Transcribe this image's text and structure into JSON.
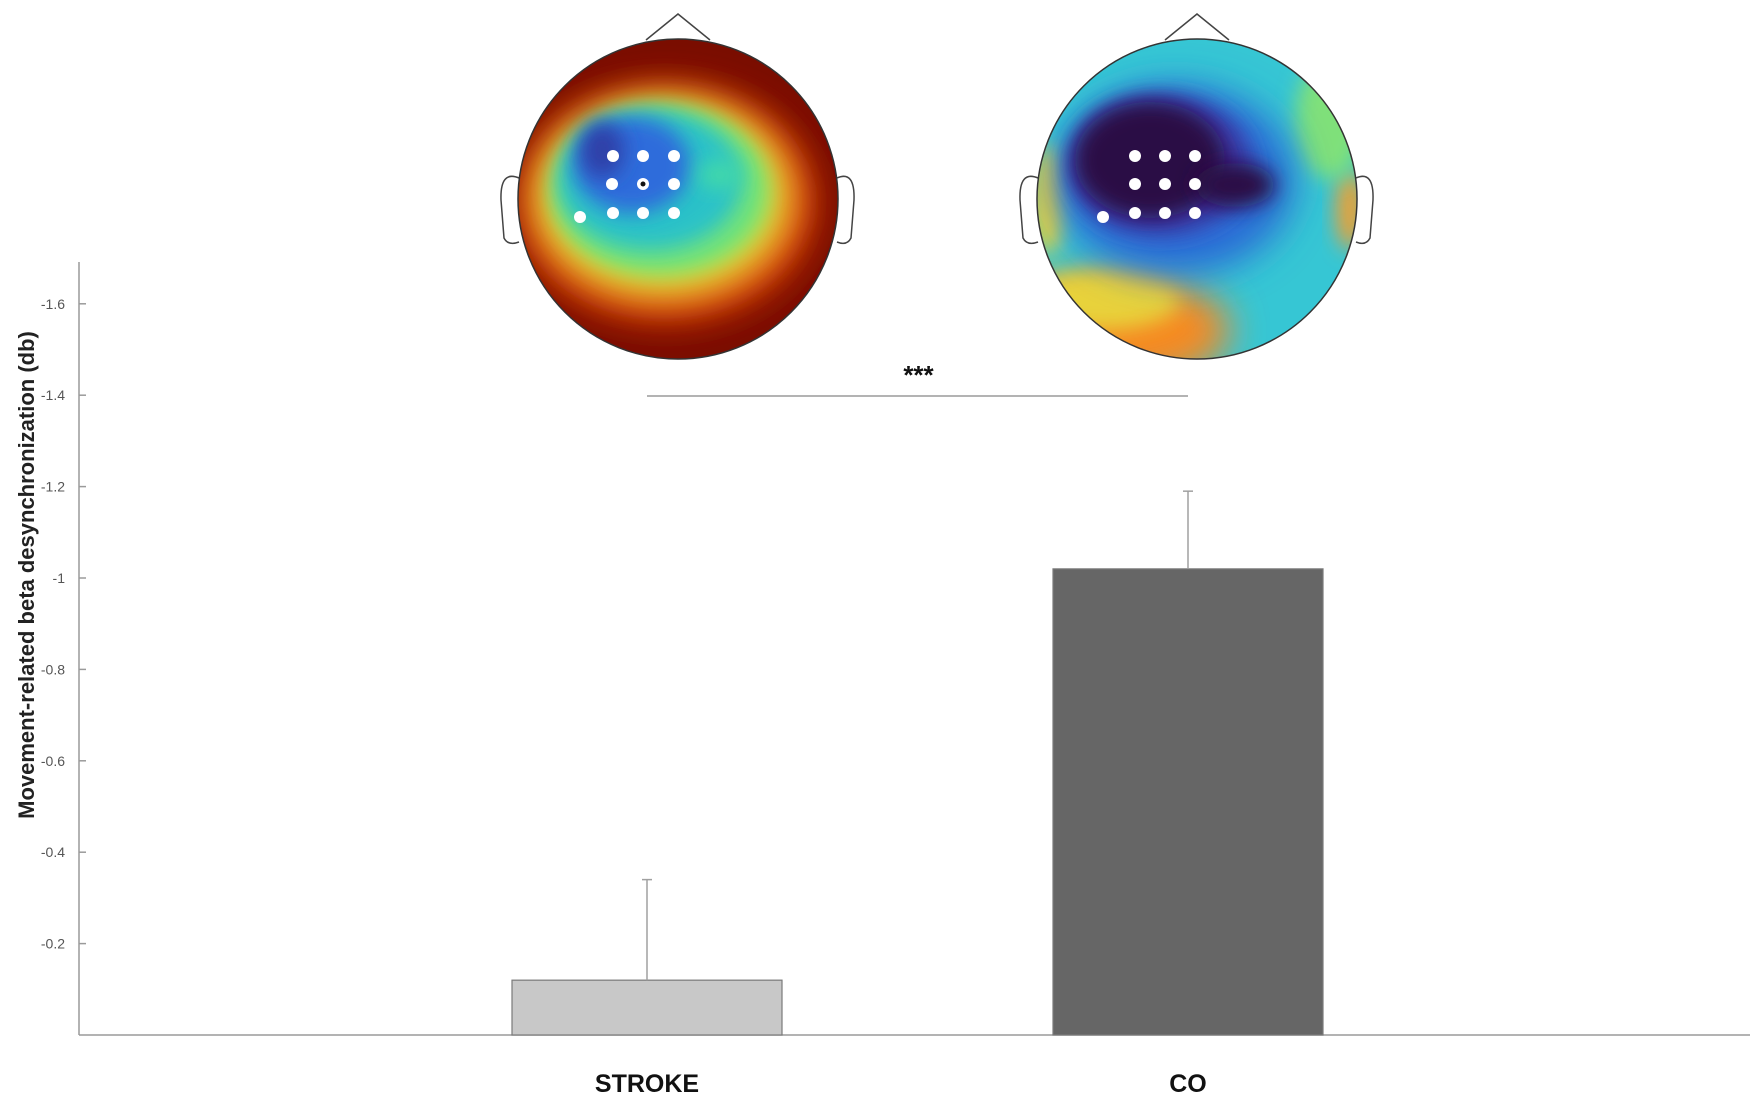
{
  "chart_data": {
    "type": "bar",
    "categories": [
      "STROKE",
      "CO"
    ],
    "values": [
      -0.12,
      -1.02
    ],
    "error_upper": [
      -0.34,
      -1.19
    ],
    "colors": [
      "#c8c8c8",
      "#666666"
    ],
    "ylabel": "Movement-related beta desynchronization (db)",
    "ylim": [
      0,
      -1.7
    ],
    "y_direction": "reversed",
    "yticks": [
      -0.2,
      -0.4,
      -0.6,
      -0.8,
      -1,
      -1.2,
      -1.4,
      -1.6
    ],
    "ytick_labels": [
      "-0.2",
      "-0.4",
      "-0.6",
      "-0.8",
      "-1",
      "-1.2",
      "-1.4",
      "-1.6"
    ],
    "significance": {
      "label": "***",
      "between": [
        "STROKE",
        "CO"
      ]
    },
    "grid": false,
    "legend": "none",
    "topomaps": [
      {
        "group": "STROKE",
        "colormap": "turbo",
        "electrode_markers": 10
      },
      {
        "group": "CO",
        "colormap": "turbo",
        "electrode_markers": 10
      }
    ]
  }
}
